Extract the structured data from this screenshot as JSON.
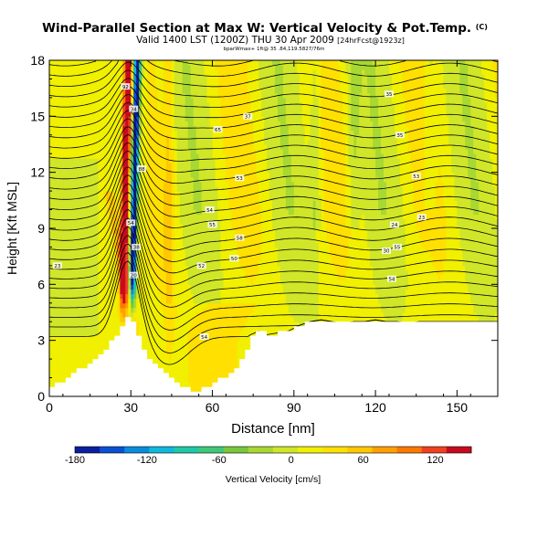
{
  "chart_data": {
    "type": "heatmap",
    "title": "Wind-Parallel Section at Max W: Vertical Velocity & Pot.Temp.",
    "title_tag": "(C)",
    "subtitle": "Valid 1400 LST (1200Z) THU 30 Apr 2009",
    "subtitle_tag": "[24hrFcst@1923z]",
    "info_line": "bparWmax+ 1ft@ 35 .84,119.5827/76m",
    "xlabel": "Distance [nm]",
    "ylabel": "Height [Kft MSL]",
    "xlim": [
      0,
      165
    ],
    "ylim": [
      0,
      18
    ],
    "xticks": [
      0,
      30,
      60,
      90,
      120,
      150
    ],
    "yticks": [
      0,
      3,
      6,
      9,
      12,
      15,
      18
    ],
    "grid": false,
    "colorbar": {
      "label": "Vertical Velocity [cm/s]",
      "min": -180,
      "max": 150,
      "ticks": [
        -180,
        -120,
        -60,
        0,
        60,
        120
      ],
      "colors": [
        "#0a1e9e",
        "#0a50d2",
        "#0a8cdc",
        "#10b8dc",
        "#20c8a8",
        "#40c878",
        "#78c83c",
        "#a8d832",
        "#d0e628",
        "#f0f000",
        "#ffe000",
        "#ffc800",
        "#ffa000",
        "#ff7800",
        "#f04020",
        "#c80a1e"
      ]
    },
    "terrain_profile": {
      "x": [
        0,
        4,
        8,
        12,
        16,
        20,
        24,
        27,
        29,
        31,
        33,
        36,
        40,
        44,
        48,
        52,
        56,
        60,
        64,
        68,
        72,
        74,
        77,
        80,
        84,
        88,
        92,
        96,
        100,
        104,
        108,
        112,
        116,
        120,
        124,
        128,
        132,
        136,
        140,
        144,
        148,
        152,
        156,
        160,
        165
      ],
      "height": [
        0.5,
        0.8,
        1.2,
        1.6,
        2.0,
        2.6,
        3.3,
        4.0,
        4.4,
        3.6,
        2.8,
        2.0,
        1.4,
        0.9,
        0.5,
        0.3,
        0.4,
        0.7,
        1.1,
        1.6,
        2.5,
        3.3,
        3.5,
        3.3,
        3.4,
        3.5,
        3.8,
        4.0,
        4.1,
        4.0,
        3.9,
        4.0,
        4.0,
        4.1,
        4.0,
        4.0,
        3.9,
        4.0,
        4.0,
        4.0,
        4.0,
        4.0,
        4.0,
        4.0,
        4.0
      ]
    },
    "theta_contour_labels": [
      {
        "text": "92",
        "x": 28,
        "y": 16.6
      },
      {
        "text": "34",
        "x": 31,
        "y": 15.4
      },
      {
        "text": "88",
        "x": 34,
        "y": 12.2
      },
      {
        "text": "54",
        "x": 30,
        "y": 9.3
      },
      {
        "text": "38",
        "x": 32,
        "y": 8.0
      },
      {
        "text": "20",
        "x": 31,
        "y": 6.5
      },
      {
        "text": "23",
        "x": 3,
        "y": 7.0
      },
      {
        "text": "37",
        "x": 73,
        "y": 15.0
      },
      {
        "text": "65",
        "x": 62,
        "y": 14.3
      },
      {
        "text": "53",
        "x": 70,
        "y": 11.7
      },
      {
        "text": "54",
        "x": 59,
        "y": 10.0
      },
      {
        "text": "55",
        "x": 60,
        "y": 9.2
      },
      {
        "text": "58",
        "x": 70,
        "y": 8.5
      },
      {
        "text": "52",
        "x": 56,
        "y": 7.0
      },
      {
        "text": "50",
        "x": 68,
        "y": 7.4
      },
      {
        "text": "54",
        "x": 57,
        "y": 3.2
      },
      {
        "text": "35",
        "x": 125,
        "y": 16.2
      },
      {
        "text": "35",
        "x": 129,
        "y": 14.0
      },
      {
        "text": "53",
        "x": 135,
        "y": 11.8
      },
      {
        "text": "24",
        "x": 127,
        "y": 9.2
      },
      {
        "text": "23",
        "x": 137,
        "y": 9.6
      },
      {
        "text": "30",
        "x": 124,
        "y": 7.8
      },
      {
        "text": "55",
        "x": 128,
        "y": 8.0
      },
      {
        "text": "54",
        "x": 126,
        "y": 6.3
      }
    ]
  }
}
